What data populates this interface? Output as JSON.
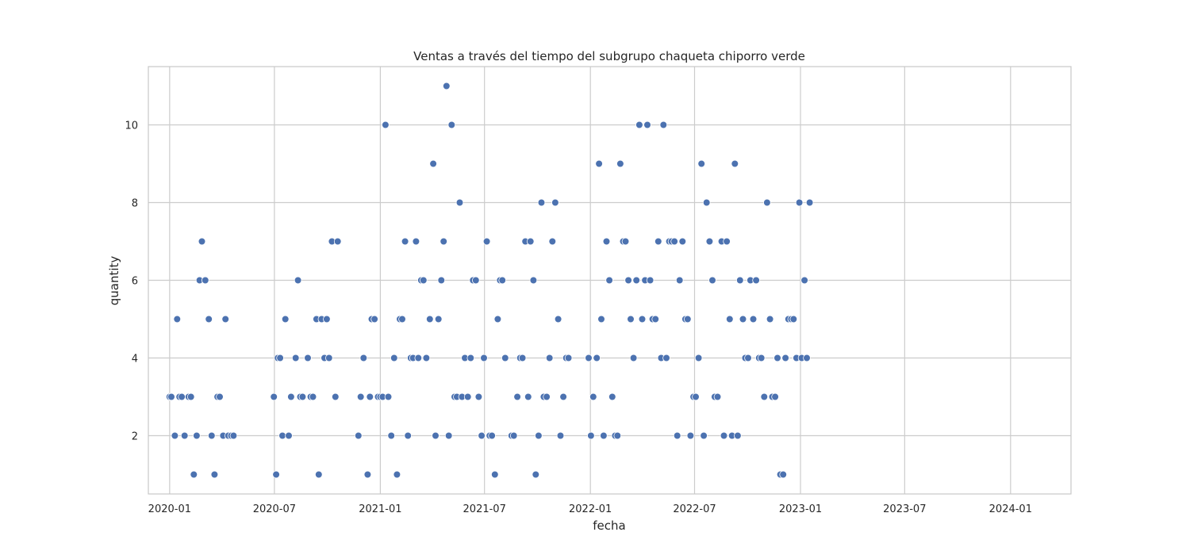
{
  "chart_data": {
    "type": "scatter",
    "title": "Ventas a través del tiempo del subgrupo chaqueta chiporro verde",
    "xlabel": "fecha",
    "ylabel": "quantity",
    "x_is_date": true,
    "xlim": [
      "2019-11-25",
      "2024-04-15"
    ],
    "ylim": [
      0.5,
      11.5
    ],
    "xticks": [
      "2020-01-01",
      "2020-07-01",
      "2021-01-01",
      "2021-07-01",
      "2022-01-01",
      "2022-07-01",
      "2023-01-01",
      "2023-07-01",
      "2024-01-01"
    ],
    "xtick_labels": [
      "2020-01",
      "2020-07",
      "2021-01",
      "2021-07",
      "2022-01",
      "2022-07",
      "2023-01",
      "2023-07",
      "2024-01"
    ],
    "yticks": [
      2,
      4,
      6,
      8,
      10
    ],
    "ytick_labels": [
      "2",
      "4",
      "6",
      "8",
      "10"
    ],
    "grid": true,
    "color": "#4c72b0",
    "points": [
      {
        "x": "2020-01-01",
        "y": 3
      },
      {
        "x": "2020-01-04",
        "y": 3
      },
      {
        "x": "2020-01-10",
        "y": 2
      },
      {
        "x": "2020-01-14",
        "y": 5
      },
      {
        "x": "2020-01-18",
        "y": 3
      },
      {
        "x": "2020-01-22",
        "y": 3
      },
      {
        "x": "2020-01-27",
        "y": 2
      },
      {
        "x": "2020-02-03",
        "y": 3
      },
      {
        "x": "2020-02-07",
        "y": 3
      },
      {
        "x": "2020-02-12",
        "y": 1
      },
      {
        "x": "2020-02-17",
        "y": 2
      },
      {
        "x": "2020-02-22",
        "y": 6
      },
      {
        "x": "2020-02-26",
        "y": 7
      },
      {
        "x": "2020-03-03",
        "y": 6
      },
      {
        "x": "2020-03-09",
        "y": 5
      },
      {
        "x": "2020-03-14",
        "y": 2
      },
      {
        "x": "2020-03-19",
        "y": 1
      },
      {
        "x": "2020-03-24",
        "y": 3
      },
      {
        "x": "2020-03-28",
        "y": 3
      },
      {
        "x": "2020-04-03",
        "y": 2
      },
      {
        "x": "2020-04-07",
        "y": 5
      },
      {
        "x": "2020-04-12",
        "y": 2
      },
      {
        "x": "2020-04-17",
        "y": 2
      },
      {
        "x": "2020-04-21",
        "y": 2
      },
      {
        "x": "2020-06-30",
        "y": 3
      },
      {
        "x": "2020-07-04",
        "y": 1
      },
      {
        "x": "2020-07-07",
        "y": 4
      },
      {
        "x": "2020-07-11",
        "y": 4
      },
      {
        "x": "2020-07-15",
        "y": 2
      },
      {
        "x": "2020-07-20",
        "y": 5
      },
      {
        "x": "2020-07-26",
        "y": 2
      },
      {
        "x": "2020-07-30",
        "y": 3
      },
      {
        "x": "2020-08-07",
        "y": 4
      },
      {
        "x": "2020-08-11",
        "y": 6
      },
      {
        "x": "2020-08-15",
        "y": 3
      },
      {
        "x": "2020-08-19",
        "y": 3
      },
      {
        "x": "2020-08-28",
        "y": 4
      },
      {
        "x": "2020-09-02",
        "y": 3
      },
      {
        "x": "2020-09-06",
        "y": 3
      },
      {
        "x": "2020-09-12",
        "y": 5
      },
      {
        "x": "2020-09-16",
        "y": 1
      },
      {
        "x": "2020-09-21",
        "y": 5
      },
      {
        "x": "2020-09-26",
        "y": 4
      },
      {
        "x": "2020-09-30",
        "y": 5
      },
      {
        "x": "2020-10-04",
        "y": 4
      },
      {
        "x": "2020-10-09",
        "y": 7
      },
      {
        "x": "2020-10-15",
        "y": 3
      },
      {
        "x": "2020-10-19",
        "y": 7
      },
      {
        "x": "2020-11-24",
        "y": 2
      },
      {
        "x": "2020-11-28",
        "y": 3
      },
      {
        "x": "2020-12-03",
        "y": 4
      },
      {
        "x": "2020-12-10",
        "y": 1
      },
      {
        "x": "2020-12-14",
        "y": 3
      },
      {
        "x": "2020-12-17",
        "y": 5
      },
      {
        "x": "2020-12-22",
        "y": 5
      },
      {
        "x": "2020-12-28",
        "y": 3
      },
      {
        "x": "2021-01-01",
        "y": 3
      },
      {
        "x": "2021-01-05",
        "y": 3
      },
      {
        "x": "2021-01-10",
        "y": 10
      },
      {
        "x": "2021-01-15",
        "y": 3
      },
      {
        "x": "2021-01-20",
        "y": 2
      },
      {
        "x": "2021-01-25",
        "y": 4
      },
      {
        "x": "2021-01-30",
        "y": 1
      },
      {
        "x": "2021-02-04",
        "y": 5
      },
      {
        "x": "2021-02-08",
        "y": 5
      },
      {
        "x": "2021-02-13",
        "y": 7
      },
      {
        "x": "2021-02-18",
        "y": 2
      },
      {
        "x": "2021-02-23",
        "y": 4
      },
      {
        "x": "2021-02-27",
        "y": 4
      },
      {
        "x": "2021-03-04",
        "y": 7
      },
      {
        "x": "2021-03-08",
        "y": 4
      },
      {
        "x": "2021-03-13",
        "y": 6
      },
      {
        "x": "2021-03-17",
        "y": 6
      },
      {
        "x": "2021-03-22",
        "y": 4
      },
      {
        "x": "2021-03-28",
        "y": 5
      },
      {
        "x": "2021-04-03",
        "y": 9
      },
      {
        "x": "2021-04-07",
        "y": 2
      },
      {
        "x": "2021-04-12",
        "y": 5
      },
      {
        "x": "2021-04-17",
        "y": 6
      },
      {
        "x": "2021-04-21",
        "y": 7
      },
      {
        "x": "2021-04-26",
        "y": 11
      },
      {
        "x": "2021-04-30",
        "y": 2
      },
      {
        "x": "2021-05-05",
        "y": 10
      },
      {
        "x": "2021-05-10",
        "y": 3
      },
      {
        "x": "2021-05-14",
        "y": 3
      },
      {
        "x": "2021-05-19",
        "y": 8
      },
      {
        "x": "2021-05-23",
        "y": 3
      },
      {
        "x": "2021-05-28",
        "y": 4
      },
      {
        "x": "2021-06-02",
        "y": 3
      },
      {
        "x": "2021-06-07",
        "y": 4
      },
      {
        "x": "2021-06-11",
        "y": 6
      },
      {
        "x": "2021-06-16",
        "y": 6
      },
      {
        "x": "2021-06-21",
        "y": 3
      },
      {
        "x": "2021-06-26",
        "y": 2
      },
      {
        "x": "2021-06-30",
        "y": 4
      },
      {
        "x": "2021-07-05",
        "y": 7
      },
      {
        "x": "2021-07-10",
        "y": 2
      },
      {
        "x": "2021-07-14",
        "y": 2
      },
      {
        "x": "2021-07-19",
        "y": 1
      },
      {
        "x": "2021-07-24",
        "y": 5
      },
      {
        "x": "2021-07-28",
        "y": 6
      },
      {
        "x": "2021-08-01",
        "y": 6
      },
      {
        "x": "2021-08-06",
        "y": 4
      },
      {
        "x": "2021-08-17",
        "y": 2
      },
      {
        "x": "2021-08-21",
        "y": 2
      },
      {
        "x": "2021-08-27",
        "y": 3
      },
      {
        "x": "2021-09-01",
        "y": 4
      },
      {
        "x": "2021-09-05",
        "y": 4
      },
      {
        "x": "2021-09-10",
        "y": 7
      },
      {
        "x": "2021-09-15",
        "y": 3
      },
      {
        "x": "2021-09-19",
        "y": 7
      },
      {
        "x": "2021-09-24",
        "y": 6
      },
      {
        "x": "2021-09-28",
        "y": 1
      },
      {
        "x": "2021-10-03",
        "y": 2
      },
      {
        "x": "2021-10-08",
        "y": 8
      },
      {
        "x": "2021-10-12",
        "y": 3
      },
      {
        "x": "2021-10-17",
        "y": 3
      },
      {
        "x": "2021-10-22",
        "y": 4
      },
      {
        "x": "2021-10-27",
        "y": 7
      },
      {
        "x": "2021-11-01",
        "y": 8
      },
      {
        "x": "2021-11-06",
        "y": 5
      },
      {
        "x": "2021-11-10",
        "y": 2
      },
      {
        "x": "2021-11-15",
        "y": 3
      },
      {
        "x": "2021-11-20",
        "y": 4
      },
      {
        "x": "2021-11-24",
        "y": 4
      },
      {
        "x": "2021-12-29",
        "y": 4
      },
      {
        "x": "2022-01-02",
        "y": 2
      },
      {
        "x": "2022-01-06",
        "y": 3
      },
      {
        "x": "2022-01-12",
        "y": 4
      },
      {
        "x": "2022-01-16",
        "y": 9
      },
      {
        "x": "2022-01-20",
        "y": 5
      },
      {
        "x": "2022-01-24",
        "y": 2
      },
      {
        "x": "2022-01-29",
        "y": 7
      },
      {
        "x": "2022-02-03",
        "y": 6
      },
      {
        "x": "2022-02-08",
        "y": 3
      },
      {
        "x": "2022-02-13",
        "y": 2
      },
      {
        "x": "2022-02-17",
        "y": 2
      },
      {
        "x": "2022-02-22",
        "y": 9
      },
      {
        "x": "2022-02-27",
        "y": 7
      },
      {
        "x": "2022-03-03",
        "y": 7
      },
      {
        "x": "2022-03-08",
        "y": 6
      },
      {
        "x": "2022-03-12",
        "y": 5
      },
      {
        "x": "2022-03-17",
        "y": 4
      },
      {
        "x": "2022-03-22",
        "y": 6
      },
      {
        "x": "2022-03-27",
        "y": 10
      },
      {
        "x": "2022-04-01",
        "y": 5
      },
      {
        "x": "2022-04-06",
        "y": 6
      },
      {
        "x": "2022-04-10",
        "y": 10
      },
      {
        "x": "2022-04-15",
        "y": 6
      },
      {
        "x": "2022-04-19",
        "y": 5
      },
      {
        "x": "2022-04-24",
        "y": 5
      },
      {
        "x": "2022-04-29",
        "y": 7
      },
      {
        "x": "2022-05-04",
        "y": 4
      },
      {
        "x": "2022-05-08",
        "y": 10
      },
      {
        "x": "2022-05-13",
        "y": 4
      },
      {
        "x": "2022-05-18",
        "y": 7
      },
      {
        "x": "2022-05-22",
        "y": 7
      },
      {
        "x": "2022-05-27",
        "y": 7
      },
      {
        "x": "2022-06-01",
        "y": 2
      },
      {
        "x": "2022-06-05",
        "y": 6
      },
      {
        "x": "2022-06-10",
        "y": 7
      },
      {
        "x": "2022-06-15",
        "y": 5
      },
      {
        "x": "2022-06-19",
        "y": 5
      },
      {
        "x": "2022-06-24",
        "y": 2
      },
      {
        "x": "2022-06-29",
        "y": 3
      },
      {
        "x": "2022-07-03",
        "y": 3
      },
      {
        "x": "2022-07-08",
        "y": 4
      },
      {
        "x": "2022-07-13",
        "y": 9
      },
      {
        "x": "2022-07-17",
        "y": 2
      },
      {
        "x": "2022-07-22",
        "y": 8
      },
      {
        "x": "2022-07-27",
        "y": 7
      },
      {
        "x": "2022-08-01",
        "y": 6
      },
      {
        "x": "2022-08-05",
        "y": 3
      },
      {
        "x": "2022-08-10",
        "y": 3
      },
      {
        "x": "2022-08-17",
        "y": 7
      },
      {
        "x": "2022-08-21",
        "y": 2
      },
      {
        "x": "2022-08-26",
        "y": 7
      },
      {
        "x": "2022-08-31",
        "y": 5
      },
      {
        "x": "2022-09-04",
        "y": 2
      },
      {
        "x": "2022-09-09",
        "y": 9
      },
      {
        "x": "2022-09-14",
        "y": 2
      },
      {
        "x": "2022-09-18",
        "y": 6
      },
      {
        "x": "2022-09-23",
        "y": 5
      },
      {
        "x": "2022-09-27",
        "y": 4
      },
      {
        "x": "2022-10-02",
        "y": 4
      },
      {
        "x": "2022-10-06",
        "y": 6
      },
      {
        "x": "2022-10-11",
        "y": 5
      },
      {
        "x": "2022-10-16",
        "y": 6
      },
      {
        "x": "2022-10-21",
        "y": 4
      },
      {
        "x": "2022-10-25",
        "y": 4
      },
      {
        "x": "2022-10-30",
        "y": 3
      },
      {
        "x": "2022-11-04",
        "y": 8
      },
      {
        "x": "2022-11-09",
        "y": 5
      },
      {
        "x": "2022-11-13",
        "y": 3
      },
      {
        "x": "2022-11-18",
        "y": 3
      },
      {
        "x": "2022-11-22",
        "y": 4
      },
      {
        "x": "2022-11-27",
        "y": 1
      },
      {
        "x": "2022-12-02",
        "y": 1
      },
      {
        "x": "2022-12-06",
        "y": 4
      },
      {
        "x": "2022-12-11",
        "y": 5
      },
      {
        "x": "2022-12-16",
        "y": 5
      },
      {
        "x": "2022-12-20",
        "y": 5
      },
      {
        "x": "2022-12-25",
        "y": 4
      },
      {
        "x": "2022-12-30",
        "y": 8
      },
      {
        "x": "2023-01-03",
        "y": 4
      },
      {
        "x": "2023-01-08",
        "y": 6
      },
      {
        "x": "2023-01-12",
        "y": 4
      },
      {
        "x": "2023-01-17",
        "y": 8
      }
    ]
  }
}
